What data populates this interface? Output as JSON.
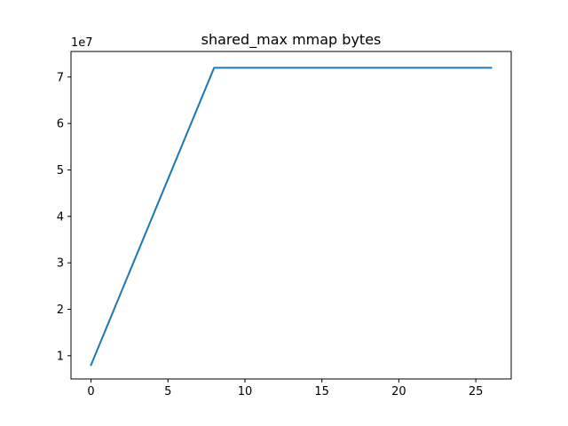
{
  "chart_data": {
    "type": "line",
    "title": "shared_max mmap bytes",
    "xlabel": "",
    "ylabel": "",
    "y_offset_label": "1e7",
    "xlim": [
      -1.3,
      27.3
    ],
    "ylim": [
      5000000,
      75500000
    ],
    "x_ticks": [
      0,
      5,
      10,
      15,
      20,
      25
    ],
    "y_ticks": [
      10000000,
      20000000,
      30000000,
      40000000,
      50000000,
      60000000,
      70000000
    ],
    "y_tick_labels": [
      "1",
      "2",
      "3",
      "4",
      "5",
      "6",
      "7"
    ],
    "grid": false,
    "series": [
      {
        "color": "#1f77b4",
        "x": [
          0,
          1,
          2,
          3,
          4,
          5,
          6,
          7,
          8,
          9,
          10,
          11,
          12,
          13,
          14,
          15,
          16,
          17,
          18,
          19,
          20,
          21,
          22,
          23,
          24,
          25,
          26
        ],
        "values": [
          8000000,
          16000000,
          24000000,
          32000000,
          40000000,
          48000000,
          56000000,
          64000000,
          72000000,
          72000000,
          72000000,
          72000000,
          72000000,
          72000000,
          72000000,
          72000000,
          72000000,
          72000000,
          72000000,
          72000000,
          72000000,
          72000000,
          72000000,
          72000000,
          72000000,
          72000000,
          72000000
        ]
      }
    ]
  }
}
